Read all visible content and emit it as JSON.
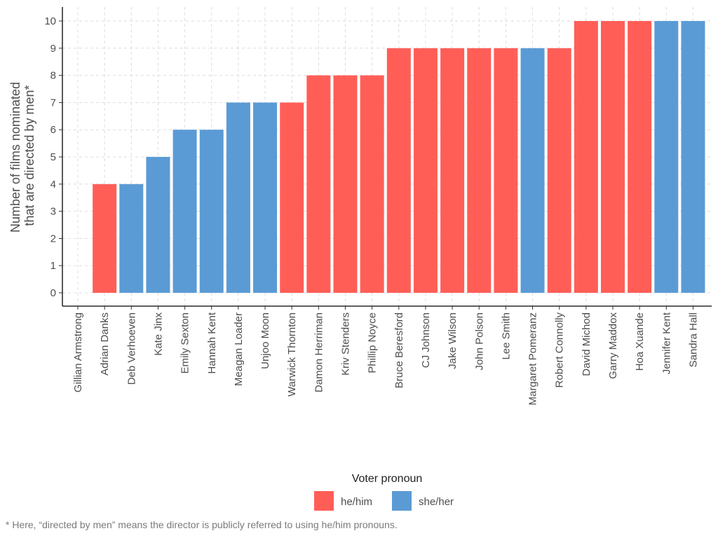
{
  "chart_data": {
    "type": "bar",
    "ylabel": [
      "Number of films nominated",
      "that are directed by men*"
    ],
    "xlabel": "",
    "ylim": [
      0,
      10
    ],
    "yticks": [
      0,
      1,
      2,
      3,
      4,
      5,
      6,
      7,
      8,
      9,
      10
    ],
    "grid": true,
    "categories": [
      "Gillian Armstrong",
      "Adrian Danks",
      "Deb Verhoeven",
      "Kate Jinx",
      "Emily Sexton",
      "Hannah Kent",
      "Meagan Loader",
      "Unjoo Moon",
      "Warwick Thornton",
      "Damon Herriman",
      "Kriv Stenders",
      "Phillip Noyce",
      "Bruce Beresford",
      "CJ Johnson",
      "Jake Wilson",
      "John Polson",
      "Lee Smith",
      "Margaret Pomeranz",
      "Robert Connolly",
      "David Michod",
      "Garry Maddox",
      "Hoa Xuande",
      "Jennifer Kent",
      "Sandra Hall"
    ],
    "values": [
      0,
      4,
      4,
      5,
      6,
      6,
      7,
      7,
      7,
      8,
      8,
      8,
      9,
      9,
      9,
      9,
      9,
      9,
      9,
      10,
      10,
      10,
      10,
      10
    ],
    "groups": [
      "he/him",
      "he/him",
      "she/her",
      "she/her",
      "she/her",
      "she/her",
      "she/her",
      "she/her",
      "he/him",
      "he/him",
      "he/him",
      "he/him",
      "he/him",
      "he/him",
      "he/him",
      "he/him",
      "he/him",
      "she/her",
      "he/him",
      "he/him",
      "he/him",
      "he/him",
      "she/her",
      "she/her"
    ],
    "legend": {
      "title": "Voter pronoun",
      "placement": "bottom",
      "entries": [
        {
          "name": "he/him",
          "color": "#ff5e57"
        },
        {
          "name": "she/her",
          "color": "#5b9bd5"
        }
      ]
    }
  },
  "footnote": "* Here, “directed by men” means the director is publicly referred to using he/him pronouns."
}
